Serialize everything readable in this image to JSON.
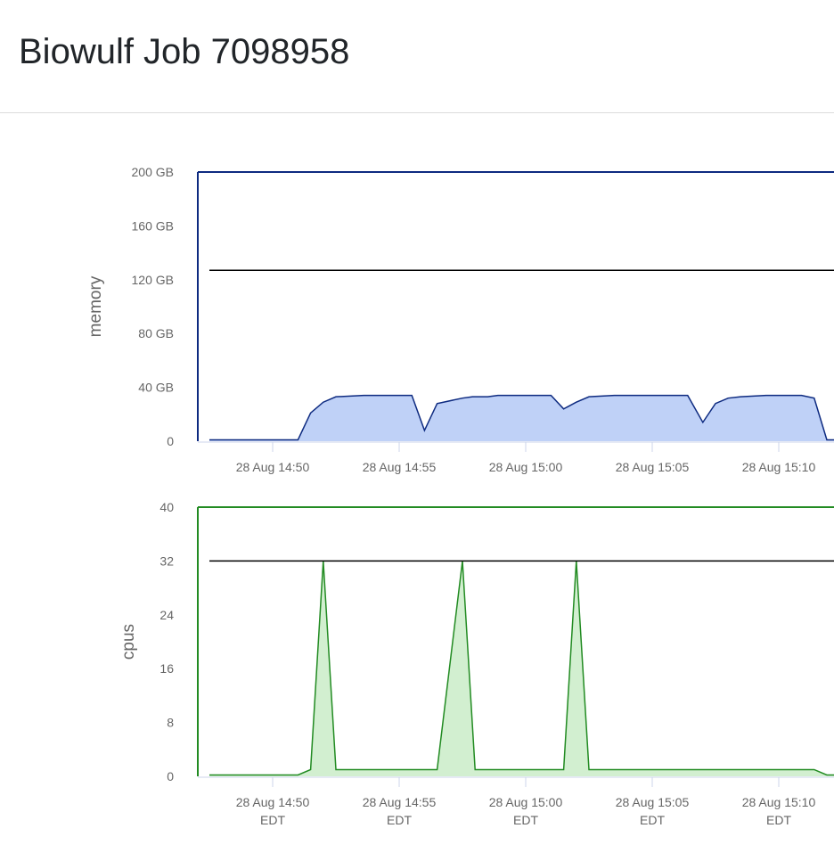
{
  "header": {
    "title": "Biowulf Job 7098958"
  },
  "chart_data": [
    {
      "type": "area",
      "id": "memory",
      "ylabel": "memory",
      "ylim": [
        0,
        200
      ],
      "y_ticks": [
        {
          "v": 0,
          "label": "0"
        },
        {
          "v": 40,
          "label": "40 GB"
        },
        {
          "v": 80,
          "label": "80 GB"
        },
        {
          "v": 120,
          "label": "120 GB"
        },
        {
          "v": 160,
          "label": "160 GB"
        },
        {
          "v": 200,
          "label": "200 GB"
        }
      ],
      "x_unit": "minutes after 28 Aug 14:00",
      "x_ticks": [
        {
          "v": 50,
          "label": "28 Aug 14:50"
        },
        {
          "v": 55,
          "label": "28 Aug 14:55"
        },
        {
          "v": 60,
          "label": "28 Aug 15:00"
        },
        {
          "v": 65,
          "label": "28 Aug 15:05"
        },
        {
          "v": 70,
          "label": "28 Aug 15:10"
        }
      ],
      "limit": 127,
      "line_color": "#0d2a80",
      "fill_color": "#bfd1f7",
      "x": [
        47.5,
        51.0,
        51.5,
        52.0,
        52.5,
        53.6,
        55.5,
        56.0,
        56.5,
        57.5,
        57.9,
        58.5,
        58.9,
        61.0,
        61.5,
        62.0,
        62.5,
        63.5,
        66.4,
        67.0,
        67.5,
        68.0,
        68.5,
        69.5,
        70.9,
        71.4,
        71.9,
        72.3
      ],
      "y": [
        1,
        1,
        21,
        29,
        33,
        34,
        34,
        8,
        28,
        32,
        33,
        33,
        34,
        34,
        24,
        29,
        33,
        34,
        34,
        14,
        28,
        32,
        33,
        34,
        34,
        32,
        1,
        1
      ]
    },
    {
      "type": "area",
      "id": "cpus",
      "ylabel": "cpus",
      "ylim": [
        0,
        40
      ],
      "y_ticks": [
        {
          "v": 0,
          "label": "0"
        },
        {
          "v": 8,
          "label": "8"
        },
        {
          "v": 16,
          "label": "16"
        },
        {
          "v": 24,
          "label": "24"
        },
        {
          "v": 32,
          "label": "32"
        },
        {
          "v": 40,
          "label": "40"
        }
      ],
      "x_unit": "minutes after 28 Aug 14:00",
      "x_ticks": [
        {
          "v": 50,
          "label": "28 Aug 14:50",
          "sub": "EDT"
        },
        {
          "v": 55,
          "label": "28 Aug 14:55",
          "sub": "EDT"
        },
        {
          "v": 60,
          "label": "28 Aug 15:00",
          "sub": "EDT"
        },
        {
          "v": 65,
          "label": "28 Aug 15:05",
          "sub": "EDT"
        },
        {
          "v": 70,
          "label": "28 Aug 15:10",
          "sub": "EDT"
        }
      ],
      "limit": 32,
      "line_color": "#228b22",
      "fill_color": "#d2efd0",
      "x": [
        47.5,
        51.0,
        51.5,
        52.0,
        52.5,
        56.5,
        57.5,
        58.0,
        61.5,
        62.0,
        62.5,
        71.4,
        71.9,
        72.3
      ],
      "y": [
        0.2,
        0.2,
        1,
        32,
        1,
        1,
        32,
        1,
        1,
        32,
        1,
        1,
        0.2,
        0.2
      ]
    }
  ]
}
